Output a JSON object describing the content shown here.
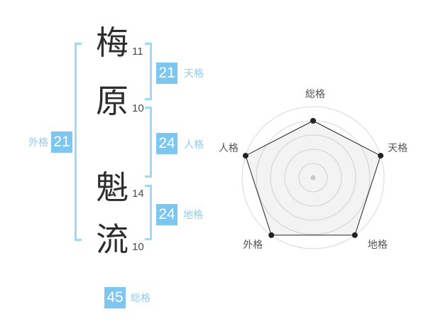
{
  "name": {
    "characters": [
      {
        "char": "梅",
        "strokes": "11"
      },
      {
        "char": "原",
        "strokes": "10"
      },
      {
        "char": "魁",
        "strokes": "14"
      },
      {
        "char": "流",
        "strokes": "10"
      }
    ]
  },
  "kaku": {
    "ten": {
      "label": "天格",
      "value": "21"
    },
    "jin": {
      "label": "人格",
      "value": "24"
    },
    "chi": {
      "label": "地格",
      "value": "24"
    },
    "gai": {
      "label": "外格",
      "value": "21"
    },
    "sou": {
      "label": "総格",
      "value": "45"
    }
  },
  "colors": {
    "badge_blue": "#7dc6f0",
    "label_blue": "#93ccf1",
    "bracket_blue": "#a0d8f6",
    "kanji_dark": "#2d2d2d",
    "radar_grid": "#d9d9d9",
    "radar_stroke": "#222222",
    "radar_fill": "rgba(120,120,120,0.09)",
    "radar_label": "#555555",
    "radar_center_dot": "#c8c8c8"
  },
  "chart_data": {
    "type": "radar",
    "axes": [
      "総格",
      "天格",
      "地格",
      "外格",
      "人格"
    ],
    "values": [
      4,
      5,
      5,
      5,
      5
    ],
    "max": 5,
    "rings": 5,
    "title": "",
    "legend": "none",
    "grid": "circular"
  }
}
